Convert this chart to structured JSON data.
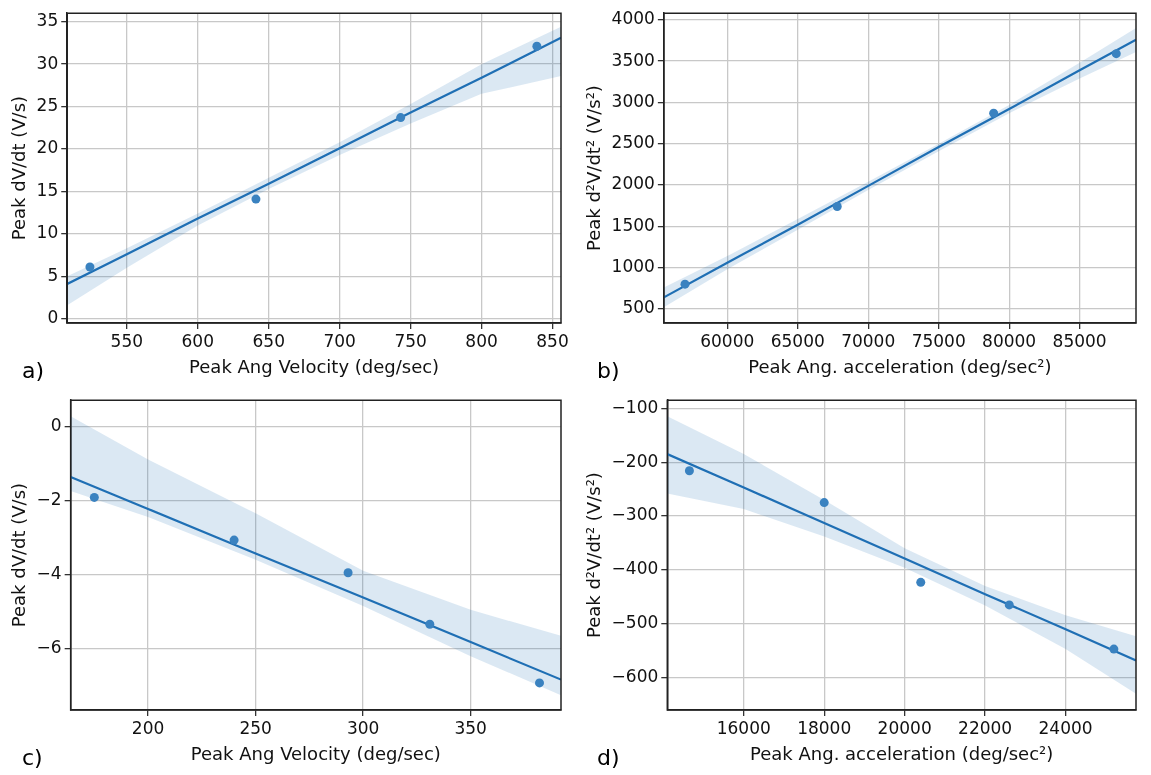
{
  "chart_data": [
    {
      "type": "scatter",
      "xlabel": "Peak Ang Velocity (deg/sec)",
      "ylabel": "Peak dV/dt (V/s)",
      "annotations": [
        "a)"
      ],
      "grid": true,
      "xlim": [
        508,
        856
      ],
      "ylim": [
        -0.5,
        36
      ],
      "xticks": [
        550,
        600,
        650,
        700,
        750,
        800,
        850
      ],
      "yticks": [
        0,
        5,
        10,
        15,
        20,
        25,
        30,
        35
      ],
      "series": [
        {
          "type": "scatter",
          "marker": "circle",
          "color": "#3a82c0",
          "x": [
            524,
            641,
            743,
            839
          ],
          "values": [
            6.1,
            14.1,
            23.7,
            32.1
          ]
        },
        {
          "type": "line",
          "color": "#1f6fb4",
          "x": [
            508,
            550,
            600,
            650,
            700,
            750,
            800,
            856
          ],
          "values": [
            4.1,
            7.6,
            11.8,
            15.9,
            20.1,
            24.3,
            28.4,
            33.1
          ],
          "lower": [
            1.6,
            6.0,
            11.0,
            15.3,
            19.3,
            23.0,
            26.5,
            28.6
          ],
          "upper": [
            5.0,
            8.3,
            12.4,
            16.6,
            20.8,
            25.3,
            30.0,
            34.4
          ]
        }
      ]
    },
    {
      "type": "scatter",
      "xlabel": "Peak Ang. acceleration (deg/sec²)",
      "ylabel": "Peak d²V/dt² (V/s²)",
      "annotations": [
        "b)"
      ],
      "grid": true,
      "xlim": [
        55500,
        89000
      ],
      "ylim": [
        330,
        4080
      ],
      "xticks": [
        60000,
        65000,
        70000,
        75000,
        80000,
        85000
      ],
      "yticks": [
        500,
        1000,
        1500,
        2000,
        2500,
        3000,
        3500,
        4000
      ],
      "series": [
        {
          "type": "scatter",
          "marker": "circle",
          "color": "#3a82c0",
          "x": [
            57000,
            67800,
            78900,
            87600
          ],
          "values": [
            800,
            1740,
            2870,
            3590
          ]
        },
        {
          "type": "line",
          "color": "#1f6fb4",
          "x": [
            55500,
            60000,
            65000,
            70000,
            75000,
            80000,
            85000,
            89000
          ],
          "values": [
            640,
            1060,
            1520,
            1990,
            2460,
            2920,
            3390,
            3760
          ],
          "lower": [
            520,
            980,
            1460,
            1940,
            2410,
            2870,
            3290,
            3610
          ],
          "upper": [
            760,
            1140,
            1590,
            2040,
            2500,
            2970,
            3480,
            3900
          ]
        }
      ]
    },
    {
      "type": "scatter",
      "xlabel": "Peak Ang Velocity (deg/sec)",
      "ylabel": "Peak dV/dt (V/s)",
      "annotations": [
        "c)"
      ],
      "grid": true,
      "xlim": [
        164,
        392
      ],
      "ylim": [
        -7.65,
        0.7
      ],
      "xticks": [
        200,
        250,
        300,
        350
      ],
      "yticks": [
        {
          "value": -6,
          "label": "−6"
        },
        {
          "value": -4,
          "label": "−4"
        },
        {
          "value": -2,
          "label": "−2"
        },
        0
      ],
      "series": [
        {
          "type": "scatter",
          "marker": "circle",
          "color": "#3a82c0",
          "x": [
            175,
            240,
            293,
            331,
            382
          ],
          "values": [
            -1.92,
            -3.07,
            -3.95,
            -5.34,
            -6.92
          ]
        },
        {
          "type": "line",
          "color": "#1f6fb4",
          "x": [
            164,
            200,
            250,
            300,
            350,
            392
          ],
          "values": [
            -1.37,
            -2.23,
            -3.43,
            -4.62,
            -5.82,
            -6.83
          ],
          "lower": [
            -1.75,
            -2.45,
            -3.6,
            -4.85,
            -6.2,
            -7.25
          ],
          "upper": [
            0.27,
            -0.9,
            -2.35,
            -3.9,
            -4.95,
            -5.65
          ]
        }
      ]
    },
    {
      "type": "scatter",
      "xlabel": "Peak Ang. acceleration (deg/sec²)",
      "ylabel": "Peak d²V/dt² (V/s²)",
      "annotations": [
        "d)"
      ],
      "grid": true,
      "xlim": [
        14100,
        25750
      ],
      "ylim": [
        -660,
        -85
      ],
      "xticks": [
        16000,
        18000,
        20000,
        22000,
        24000
      ],
      "yticks": [
        {
          "value": -600,
          "label": "−600"
        },
        {
          "value": -500,
          "label": "−500"
        },
        {
          "value": -400,
          "label": "−400"
        },
        {
          "value": -300,
          "label": "−300"
        },
        {
          "value": -200,
          "label": "−200"
        },
        {
          "value": -100,
          "label": "−100"
        }
      ],
      "series": [
        {
          "type": "scatter",
          "marker": "circle",
          "color": "#3a82c0",
          "x": [
            14650,
            18000,
            20400,
            22600,
            25200
          ],
          "values": [
            -216,
            -275,
            -423,
            -465,
            -547
          ]
        },
        {
          "type": "line",
          "color": "#1f6fb4",
          "x": [
            14100,
            16000,
            18000,
            20000,
            22000,
            24000,
            25750
          ],
          "values": [
            -185,
            -247,
            -313,
            -379,
            -445,
            -510,
            -568
          ],
          "lower": [
            -258,
            -287,
            -338,
            -396,
            -466,
            -547,
            -630
          ],
          "upper": [
            -115,
            -185,
            -270,
            -360,
            -430,
            -484,
            -523
          ]
        }
      ]
    }
  ]
}
